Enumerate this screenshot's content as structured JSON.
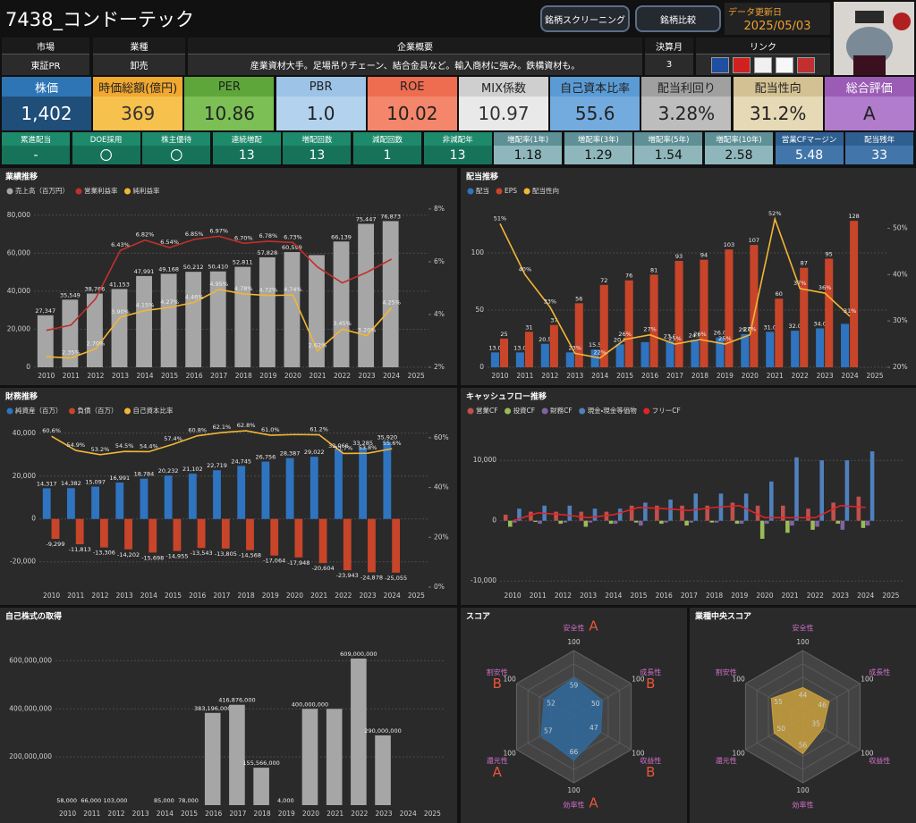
{
  "header": {
    "title": "7438_コンドーテック",
    "buttons": [
      "銘柄スクリーニング",
      "銘柄比較"
    ],
    "update_label": "データ更新日",
    "update_date": "2025/05/03"
  },
  "profile": [
    {
      "label": "市場",
      "value": "東証PR"
    },
    {
      "label": "業種",
      "value": "卸売"
    },
    {
      "label": "企業概要",
      "value": "産業資材大手。足場吊りチェーン、結合金具など。輸入商材に強み。鉄構資材も。"
    },
    {
      "label": "決算月",
      "value": "3"
    },
    {
      "label": "リンク"
    }
  ],
  "kpis": [
    {
      "label": "株価",
      "value": "1,402"
    },
    {
      "label": "時価総額(億円)",
      "value": "369"
    },
    {
      "label": "PER",
      "value": "10.86"
    },
    {
      "label": "PBR",
      "value": "1.0"
    },
    {
      "label": "ROE",
      "value": "10.02"
    },
    {
      "label": "MIX係数",
      "value": "10.97"
    },
    {
      "label": "自己資本比率",
      "value": "55.6"
    },
    {
      "label": "配当利回り",
      "value": "3.28%"
    },
    {
      "label": "配当性向",
      "value": "31.2%"
    },
    {
      "label": "総合評価",
      "value": "A"
    }
  ],
  "stats": [
    {
      "label": "累進配当",
      "value": "-"
    },
    {
      "label": "DOE採用",
      "value": "〇"
    },
    {
      "label": "株主優待",
      "value": "〇"
    },
    {
      "label": "連続増配",
      "value": "13"
    },
    {
      "label": "増配回数",
      "value": "13"
    },
    {
      "label": "減配回数",
      "value": "1"
    },
    {
      "label": "非減配年",
      "value": "13"
    },
    {
      "label": "増配率(1年)",
      "value": "1.18"
    },
    {
      "label": "増配率(3年)",
      "value": "1.29"
    },
    {
      "label": "増配率(5年)",
      "value": "1.54"
    },
    {
      "label": "増配率(10年)",
      "value": "2.58"
    },
    {
      "label": "営業CFマージン",
      "value": "5.48"
    },
    {
      "label": "配当残年",
      "value": "33"
    }
  ],
  "chart_data": [
    {
      "type": "combo",
      "title": "業績推移",
      "categories": [
        "2010",
        "2011",
        "2012",
        "2013",
        "2014",
        "2015",
        "2016",
        "2017",
        "2018",
        "2019",
        "2020",
        "2021",
        "2022",
        "2023",
        "2024",
        "2025"
      ],
      "ylim": [
        0,
        86000
      ],
      "yticks": [
        0,
        {
          "value": 20000,
          "label": "20,000"
        },
        {
          "value": 40000,
          "label": "40,000"
        },
        {
          "value": 60000,
          "label": "60,000"
        },
        {
          "value": 80000,
          "label": "80,000"
        }
      ],
      "y2lim": [
        2,
        8.2
      ],
      "y2ticks": [
        {
          "value": 2,
          "label": "2%"
        },
        {
          "value": 4,
          "label": "4%"
        },
        {
          "value": 6,
          "label": "6%"
        },
        {
          "value": 8,
          "label": "8%"
        }
      ],
      "grid": true,
      "series": [
        {
          "name": "売上高（百万円）",
          "type": "bar",
          "color": "#a6a6a6",
          "values": [
            27347,
            35549,
            38766,
            41153,
            47991,
            49168,
            50212,
            50410,
            52811,
            57828,
            60599,
            59000,
            66139,
            75447,
            76873,
            null
          ],
          "value_labels": [
            "27,347",
            "35,549",
            "38,766",
            "41,153",
            "47,991",
            "49,168",
            "50,212",
            "50,410",
            "52,811",
            "57,828",
            "60,599",
            null,
            "66,139",
            "75,447",
            "76,873",
            null
          ]
        },
        {
          "name": "営業利益率",
          "type": "line",
          "axis": "y2",
          "color": "#c0302b",
          "values": [
            3.4,
            3.6,
            4.6,
            6.43,
            6.82,
            6.54,
            6.85,
            6.97,
            6.7,
            6.78,
            6.73,
            5.8,
            5.2,
            5.6,
            6.1,
            null
          ],
          "value_labels": [
            null,
            null,
            null,
            "6.43%",
            "6.82%",
            "6.54%",
            "6.85%",
            "6.97%",
            "6.70%",
            "6.78%",
            "6.73%",
            null,
            null,
            null,
            null,
            null
          ]
        },
        {
          "name": "純利益率",
          "type": "line",
          "axis": "y2",
          "color": "#f2b636",
          "values": [
            2.4,
            2.35,
            2.7,
            3.9,
            4.15,
            4.27,
            4.46,
            4.95,
            4.78,
            4.72,
            4.74,
            2.62,
            3.45,
            3.2,
            4.25,
            null
          ],
          "value_labels": [
            null,
            "2.35%",
            "2.70%",
            "3.90%",
            "4.15%",
            "4.27%",
            "4.46%",
            "4.95%",
            "4.78%",
            "4.72%",
            "4.74%",
            "2.62%",
            "3.45%",
            "3.20%",
            "4.25%",
            null
          ]
        }
      ]
    },
    {
      "type": "combo",
      "title": "配当推移",
      "categories": [
        "2010",
        "2011",
        "2012",
        "2013",
        "2014",
        "2015",
        "2016",
        "2017",
        "2018",
        "2019",
        "2020",
        "2021",
        "2022",
        "2023",
        "2024",
        "2025"
      ],
      "ylim": [
        0,
        143
      ],
      "yticks": [
        0,
        50,
        100
      ],
      "y2lim": [
        20,
        55.3
      ],
      "y2ticks": [
        {
          "value": 20,
          "label": "20%"
        },
        {
          "value": 30,
          "label": "30%"
        },
        {
          "value": 40,
          "label": "40%"
        },
        {
          "value": 50,
          "label": "50%"
        }
      ],
      "grid": true,
      "series": [
        {
          "name": "配当",
          "type": "bar",
          "color": "#2f74c0",
          "values": [
            13.0,
            13.0,
            20.5,
            13.0,
            15.5,
            20.0,
            22.0,
            23.0,
            24.0,
            26.0,
            29.0,
            31.0,
            32.0,
            34.0,
            38.0,
            null
          ],
          "value_labels": [
            "13.0",
            "13.0",
            "20.5",
            null,
            "15.5",
            "20.0",
            null,
            "23.0",
            "24.0",
            "26.0",
            "29.0",
            "31.0",
            "32.0",
            "34.0",
            null,
            null
          ]
        },
        {
          "name": "EPS",
          "type": "bar",
          "color": "#c8452a",
          "data_labels": true,
          "values": [
            25,
            31,
            37,
            56,
            72,
            76,
            81,
            93,
            94,
            103,
            107,
            60,
            87,
            95,
            128,
            null
          ]
        },
        {
          "name": "配当性向",
          "type": "line",
          "axis": "y2",
          "color": "#f2b636",
          "values": [
            51,
            40,
            33,
            23,
            22,
            26,
            27,
            25,
            26,
            25,
            27,
            52,
            37,
            36,
            31,
            null
          ],
          "value_labels": [
            "51%",
            "40%",
            "33%",
            "23%",
            "22%",
            "26%",
            "27%",
            "25%",
            "26%",
            "25%",
            "27%",
            "52%",
            "37%",
            "36%",
            "31%",
            null
          ]
        }
      ]
    },
    {
      "type": "combo",
      "title": "財務推移",
      "categories": [
        "2010",
        "2011",
        "2012",
        "2013",
        "2014",
        "2015",
        "2016",
        "2017",
        "2018",
        "2019",
        "2020",
        "2021",
        "2022",
        "2023",
        "2024",
        "2025"
      ],
      "ylim": [
        -31800,
        44500
      ],
      "yticks": [
        {
          "value": -20000,
          "label": "-20,000"
        },
        0,
        {
          "value": 20000,
          "label": "20,000"
        },
        {
          "value": 40000,
          "label": "40,000"
        }
      ],
      "y2lim": [
        0,
        65.7
      ],
      "y2ticks": [
        {
          "value": 0,
          "label": "0%"
        },
        {
          "value": 20,
          "label": "20%"
        },
        {
          "value": 40,
          "label": "40%"
        },
        {
          "value": 60,
          "label": "60%"
        }
      ],
      "grid": true,
      "series": [
        {
          "name": "純資産（百万）",
          "type": "bar",
          "color": "#2f74c0",
          "values": [
            14317,
            14382,
            15097,
            16991,
            18784,
            20232,
            21102,
            22719,
            24745,
            26756,
            28387,
            29022,
            32066,
            33285,
            35920,
            null
          ],
          "value_labels": [
            "14,317",
            "14,382",
            "15,097",
            "16,991",
            "18,784",
            "20,232",
            "21,102",
            "22,719",
            "24,745",
            "26,756",
            "28,387",
            "29,022",
            "32,066",
            "33,285",
            "35,920",
            null
          ]
        },
        {
          "name": "負債（百万）",
          "type": "bar",
          "color": "#c8452a",
          "values": [
            -9299,
            -11813,
            -13306,
            -14202,
            -15698,
            -14955,
            -13543,
            -13805,
            -14568,
            -17064,
            -17948,
            -20604,
            -23943,
            -24878,
            -25055,
            null
          ],
          "value_labels": [
            "-9,299",
            "-11,813",
            "-13,306",
            "-14,202",
            "-15,698",
            "-14,955",
            "-13,543",
            "-13,805",
            "-14,568",
            "-17,064",
            "-17,948",
            "-20,604",
            "-23,943",
            "-24,878",
            "-25,055",
            null
          ]
        },
        {
          "name": "自己資本比率",
          "type": "line",
          "axis": "y2",
          "color": "#f2b636",
          "values": [
            60.6,
            54.9,
            53.2,
            54.5,
            54.4,
            57.4,
            60.8,
            62.1,
            62.8,
            61.0,
            61.3,
            61.2,
            53.7,
            53.8,
            55.6,
            null
          ],
          "value_labels": [
            "60.6%",
            "54.9%",
            "53.2%",
            "54.5%",
            "54.4%",
            "57.4%",
            "60.8%",
            "62.1%",
            "62.8%",
            "61.0%",
            null,
            "61.2%",
            "53.7%",
            "53.8%",
            "55.6%",
            null
          ]
        }
      ]
    },
    {
      "type": "combo",
      "title": "キャッシュフロー推移",
      "categories": [
        "2010",
        "2011",
        "2012",
        "2013",
        "2014",
        "2015",
        "2016",
        "2017",
        "2018",
        "2019",
        "2020",
        "2021",
        "2022",
        "2023",
        "2024",
        "2025"
      ],
      "ylim": [
        -11000,
        16100
      ],
      "yticks": [
        {
          "value": -10000,
          "label": "-10,000"
        },
        0,
        {
          "value": 10000,
          "label": "10,000"
        }
      ],
      "grid": true,
      "series": [
        {
          "name": "営業CF",
          "type": "bar",
          "color": "#c0504d",
          "values": [
            1000,
            1500,
            1500,
            1500,
            1500,
            2500,
            2500,
            2500,
            2500,
            3000,
            2500,
            2500,
            2000,
            3000,
            4000,
            null
          ]
        },
        {
          "name": "投資CF",
          "type": "bar",
          "color": "#9bbb59",
          "values": [
            -1000,
            -200,
            -500,
            -1000,
            -500,
            -300,
            -500,
            -800,
            -300,
            -500,
            -3000,
            -2000,
            -1500,
            -500,
            -1200,
            null
          ]
        },
        {
          "name": "財務CF",
          "type": "bar",
          "color": "#8064a2",
          "values": [
            -300,
            -500,
            -300,
            -300,
            -500,
            -800,
            -300,
            -300,
            -300,
            -500,
            -500,
            -800,
            -1000,
            -1500,
            -800,
            null
          ]
        },
        {
          "name": "現金・現金等価物",
          "type": "bar",
          "color": "#4f81bd",
          "values": [
            2000,
            2500,
            2500,
            2000,
            2000,
            3000,
            3500,
            4500,
            4500,
            4500,
            6500,
            10500,
            10000,
            10000,
            11500,
            null
          ]
        },
        {
          "name": "フリーCF",
          "type": "line",
          "color": "#e0242a",
          "values": [
            0,
            1300,
            1000,
            500,
            1000,
            2200,
            2000,
            1700,
            2200,
            2500,
            500,
            500,
            500,
            2500,
            2200,
            null
          ]
        }
      ]
    },
    {
      "type": "combo",
      "title": "自己株式の取得",
      "categories": [
        "2010",
        "2011",
        "2012",
        "2013",
        "2014",
        "2015",
        "2016",
        "2017",
        "2018",
        "2019",
        "2020",
        "2021",
        "2022",
        "2023",
        "2024",
        "2025"
      ],
      "ylim": [
        0,
        672000000
      ],
      "yticks": [
        {
          "value": 200000000,
          "label": "200,000,000"
        },
        {
          "value": 400000000,
          "label": "400,000,000"
        },
        {
          "value": 600000000,
          "label": "600,000,000"
        }
      ],
      "grid": true,
      "series": [
        {
          "type": "bar",
          "color": "#a6a6a6",
          "values": [
            58000,
            66000,
            103000,
            null,
            85000,
            78000,
            383196000,
            416876000,
            155566000,
            4000,
            400000000,
            400000000,
            609000000,
            290000000,
            null,
            null
          ],
          "value_labels": [
            "58,000",
            "66,000",
            "103,000",
            null,
            "85,000",
            "78,000",
            "383,196,000",
            "416,876,000",
            "155,566,000",
            "4,000",
            "400,000,000",
            null,
            "609,000,000",
            "290,000,000",
            null,
            null
          ]
        }
      ]
    },
    {
      "type": "radar",
      "title": "スコア",
      "categories": [
        "安全性",
        "成長性",
        "収益性",
        "効率性",
        "還元性",
        "割安性"
      ],
      "values": [
        59,
        50,
        47,
        66,
        57,
        52
      ],
      "grades": [
        "A",
        "B",
        "B",
        "A",
        "A",
        "B"
      ],
      "rmax": 100,
      "color": "#2f6a9c"
    },
    {
      "type": "radar",
      "title": "業種中央スコア",
      "categories": [
        "安全性",
        "成長性",
        "収益性",
        "効率性",
        "還元性",
        "割安性"
      ],
      "values": [
        44,
        46,
        35,
        56,
        50,
        55
      ],
      "rmax": 100,
      "color": "#c9a03c"
    }
  ]
}
